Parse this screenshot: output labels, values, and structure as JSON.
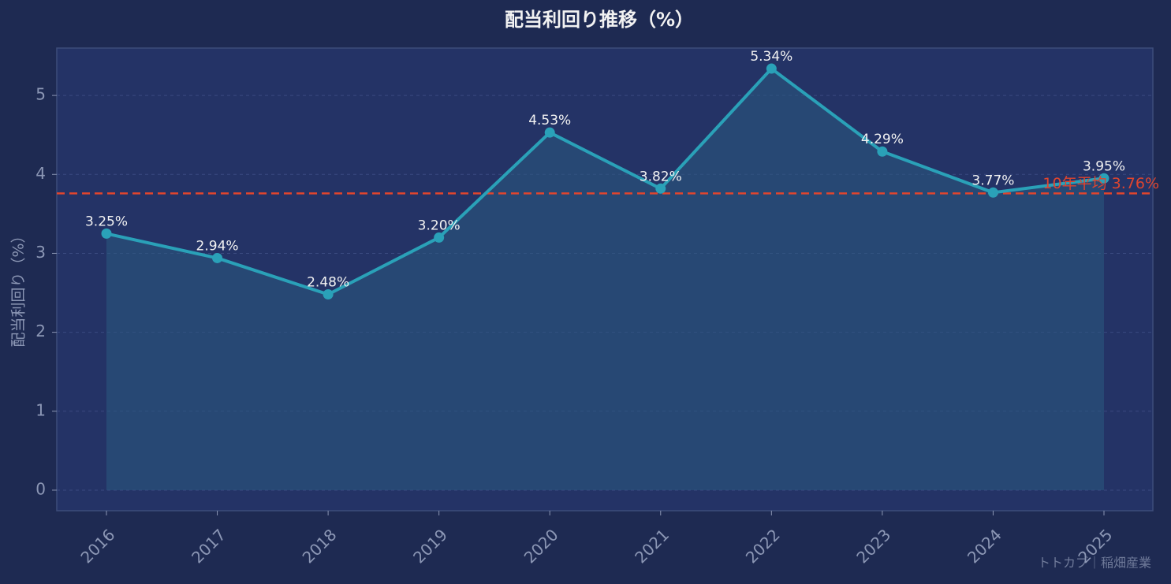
{
  "chart_data": {
    "type": "line",
    "title": "配当利回り推移（%）",
    "y_label": "配当利回り（%）",
    "categories": [
      "2016",
      "2017",
      "2018",
      "2019",
      "2020",
      "2021",
      "2022",
      "2023",
      "2024",
      "2025"
    ],
    "values": [
      3.25,
      2.94,
      2.48,
      3.2,
      4.53,
      3.82,
      5.34,
      4.29,
      3.77,
      3.95
    ],
    "value_labels": [
      "3.25%",
      "2.94%",
      "2.48%",
      "3.20%",
      "4.53%",
      "3.82%",
      "5.34%",
      "4.29%",
      "3.77%",
      "3.95%"
    ],
    "color": "#2aa1b8",
    "area": true,
    "reference_line": {
      "value": 3.76,
      "label": "10年平均 3.76%",
      "color": "#e0452e"
    },
    "ylim": [
      -0.26,
      5.6
    ],
    "yticks": [
      0,
      1,
      2,
      3,
      4,
      5
    ],
    "grid": true,
    "watermark": "トトカブ｜稲畑産業"
  }
}
